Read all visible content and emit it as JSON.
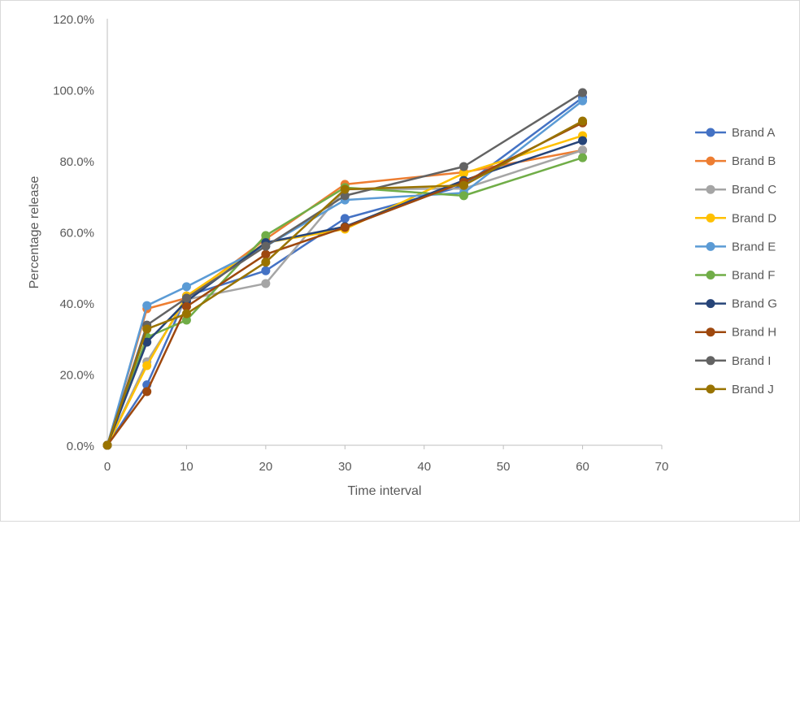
{
  "chart_data": {
    "type": "line",
    "title": "",
    "xlabel": "Time interval",
    "ylabel": "Percentage release",
    "xlim": [
      0,
      70
    ],
    "ylim": [
      0,
      120
    ],
    "x_ticks": [
      "0",
      "10",
      "20",
      "30",
      "40",
      "50",
      "60",
      "70"
    ],
    "y_ticks": [
      "0.0%",
      "20.0%",
      "40.0%",
      "60.0%",
      "80.0%",
      "100.0%",
      "120.0%"
    ],
    "grid": false,
    "legend_position": "right",
    "x": [
      0,
      5,
      10,
      20,
      30,
      45,
      60
    ],
    "series": [
      {
        "name": "Brand A",
        "color": "#4472C4",
        "values": [
          0,
          17.0,
          42.0,
          49.1,
          63.8,
          73.0,
          97.8
        ]
      },
      {
        "name": "Brand B",
        "color": "#ED7D31",
        "values": [
          0,
          38.4,
          41.4,
          58.0,
          73.4,
          76.8,
          83.0
        ]
      },
      {
        "name": "Brand C",
        "color": "#A5A5A5",
        "values": [
          0,
          23.5,
          41.0,
          45.5,
          72.0,
          72.2,
          83.0
        ]
      },
      {
        "name": "Brand D",
        "color": "#FFC000",
        "values": [
          0,
          22.4,
          42.0,
          57.0,
          60.8,
          76.5,
          87.1
        ]
      },
      {
        "name": "Brand E",
        "color": "#5B9BD5",
        "values": [
          0,
          39.3,
          44.6,
          56.0,
          69.0,
          71.0,
          96.9
        ]
      },
      {
        "name": "Brand F",
        "color": "#70AD47",
        "values": [
          0,
          30.4,
          35.2,
          59.0,
          72.5,
          70.2,
          80.9
        ]
      },
      {
        "name": "Brand G",
        "color": "#264478",
        "values": [
          0,
          29.0,
          40.5,
          57.0,
          61.5,
          74.5,
          85.7
        ]
      },
      {
        "name": "Brand H",
        "color": "#9E480E",
        "values": [
          0,
          15.1,
          39.0,
          53.7,
          61.3,
          74.0,
          90.7
        ]
      },
      {
        "name": "Brand I",
        "color": "#636363",
        "values": [
          0,
          33.8,
          41.4,
          56.0,
          70.2,
          78.4,
          99.2
        ]
      },
      {
        "name": "Brand J",
        "color": "#997300",
        "values": [
          0,
          32.7,
          37.0,
          51.5,
          72.0,
          73.1,
          91.2
        ]
      }
    ]
  }
}
